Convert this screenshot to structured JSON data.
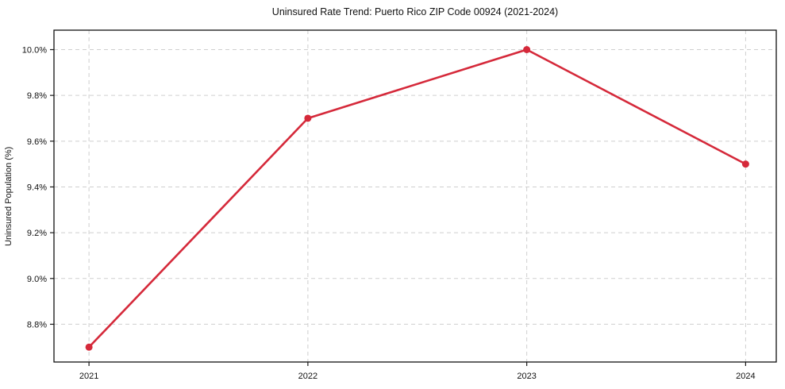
{
  "figure": {
    "background": "#ffffff"
  },
  "chart_data": {
    "type": "line",
    "title": "Uninsured Rate Trend: Puerto Rico ZIP Code 00924 (2021-2024)",
    "xlabel": "",
    "ylabel": "Uninsured Population (%)",
    "x": [
      2021,
      2022,
      2023,
      2024
    ],
    "x_tick_labels": [
      "2021",
      "2022",
      "2023",
      "2024"
    ],
    "values": [
      8.7,
      9.7,
      10.0,
      9.5
    ],
    "y_tick_values": [
      8.8,
      9.0,
      9.2,
      9.4,
      9.6,
      9.8,
      10.0
    ],
    "y_tick_labels": [
      "8.8%",
      "9.0%",
      "9.2%",
      "9.4%",
      "9.6%",
      "9.8%",
      "10.0%"
    ],
    "xlim": [
      2020.84,
      2024.14
    ],
    "ylim": [
      8.635,
      10.085
    ],
    "grid": true,
    "grid_style": "dashed",
    "legend_position": "none",
    "line_color": "#d5293a",
    "marker": "circle"
  }
}
